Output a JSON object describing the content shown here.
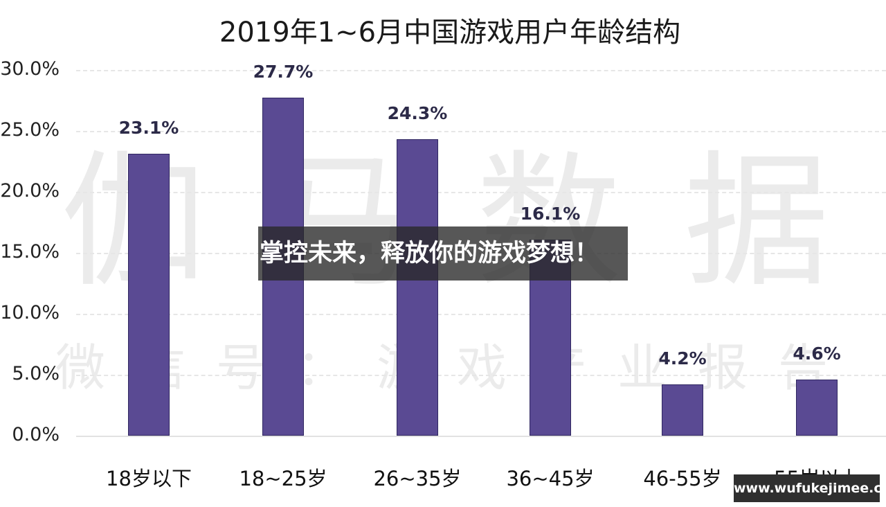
{
  "chart_data": {
    "type": "bar",
    "title": "2019年1~6月中国游戏用户年龄结构",
    "categories": [
      "18岁以下",
      "18~25岁",
      "26~35岁",
      "36~45岁",
      "46-55岁",
      "55岁以上"
    ],
    "values": [
      23.1,
      27.7,
      24.3,
      16.1,
      4.2,
      4.6
    ],
    "value_labels": [
      "23.1%",
      "27.7%",
      "24.3%",
      "16.1%",
      "4.2%",
      "4.6%"
    ],
    "xlabel": "",
    "ylabel": "",
    "ylim": [
      0,
      30
    ],
    "yticks": [
      "30.0%",
      "25.0%",
      "20.0%",
      "15.0%",
      "10.0%",
      "5.0%",
      "0.0%"
    ],
    "grid": true,
    "legend": null,
    "bar_color": "#5a4a93"
  },
  "watermark": {
    "main": "伽马数据",
    "sub": "微信号：游戏产业报告"
  },
  "overlay": {
    "banner_text": "掌控未来，释放你的游戏梦想！",
    "site_url": "www.wufukejimee.com"
  }
}
